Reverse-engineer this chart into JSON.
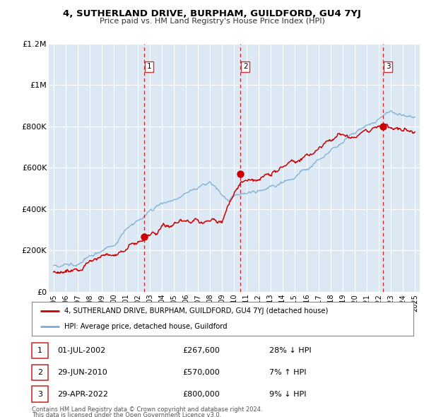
{
  "title": "4, SUTHERLAND DRIVE, BURPHAM, GUILDFORD, GU4 7YJ",
  "subtitle": "Price paid vs. HM Land Registry's House Price Index (HPI)",
  "legend_red": "4, SUTHERLAND DRIVE, BURPHAM, GUILDFORD, GU4 7YJ (detached house)",
  "legend_blue": "HPI: Average price, detached house, Guildford",
  "table_rows": [
    {
      "num": "1",
      "date": "01-JUL-2002",
      "price": "£267,600",
      "pct": "28% ↓ HPI"
    },
    {
      "num": "2",
      "date": "29-JUN-2010",
      "price": "£570,000",
      "pct": "7% ↑ HPI"
    },
    {
      "num": "3",
      "date": "29-APR-2022",
      "price": "£800,000",
      "pct": "9% ↓ HPI"
    }
  ],
  "footnote1": "Contains HM Land Registry data © Crown copyright and database right 2024.",
  "footnote2": "This data is licensed under the Open Government Licence v3.0.",
  "sale_dates": [
    2002.496,
    2010.487,
    2022.321
  ],
  "sale_prices": [
    267600,
    570000,
    800000
  ],
  "red_color": "#cc0000",
  "blue_color": "#7aadd4",
  "vline_color": "#cc0000",
  "bg_color": "#dce9f5",
  "plot_bg": "#ffffff",
  "ylim": [
    0,
    1200000
  ],
  "xlim_start": 1994.6,
  "xlim_end": 2025.4,
  "yticks": [
    0,
    200000,
    400000,
    600000,
    800000,
    1000000,
    1200000
  ],
  "ytick_labels": [
    "£0",
    "£200K",
    "£400K",
    "£600K",
    "£800K",
    "£1M",
    "£1.2M"
  ],
  "xticks": [
    1995,
    1996,
    1997,
    1998,
    1999,
    2000,
    2001,
    2002,
    2003,
    2004,
    2005,
    2006,
    2007,
    2008,
    2009,
    2010,
    2011,
    2012,
    2013,
    2014,
    2015,
    2016,
    2017,
    2018,
    2019,
    2020,
    2021,
    2022,
    2023,
    2024,
    2025
  ]
}
